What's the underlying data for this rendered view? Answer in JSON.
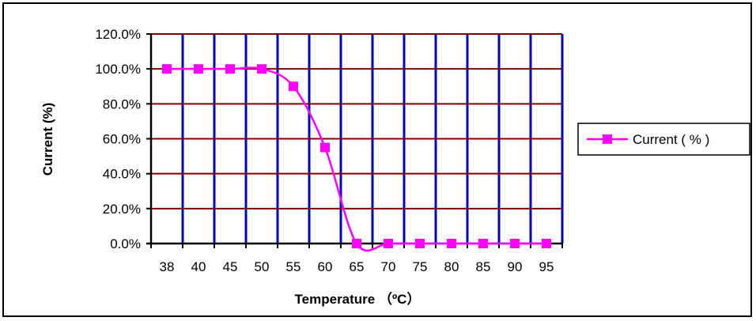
{
  "chart_data": {
    "type": "line",
    "xlabel": "Temperature （ºC）",
    "ylabel": "Current  (%)",
    "categories": [
      "38",
      "40",
      "45",
      "50",
      "55",
      "60",
      "65",
      "70",
      "75",
      "80",
      "85",
      "90",
      "95"
    ],
    "y_tick_labels": [
      "0.0%",
      "20.0%",
      "40.0%",
      "60.0%",
      "80.0%",
      "100.0%",
      "120.0%"
    ],
    "ylim": [
      0,
      120
    ],
    "y_tick_step": 20,
    "series": [
      {
        "name": "Current ( % )",
        "values": [
          100,
          100,
          100,
          100,
          90,
          55,
          0,
          0,
          0,
          0,
          0,
          0,
          0
        ]
      }
    ],
    "legend_position": "right",
    "grid": true,
    "colors": {
      "series": "#ff00ff",
      "vertical_grid": "#0000cc",
      "horizontal_grid": "#800000",
      "axis": "#000000"
    }
  }
}
